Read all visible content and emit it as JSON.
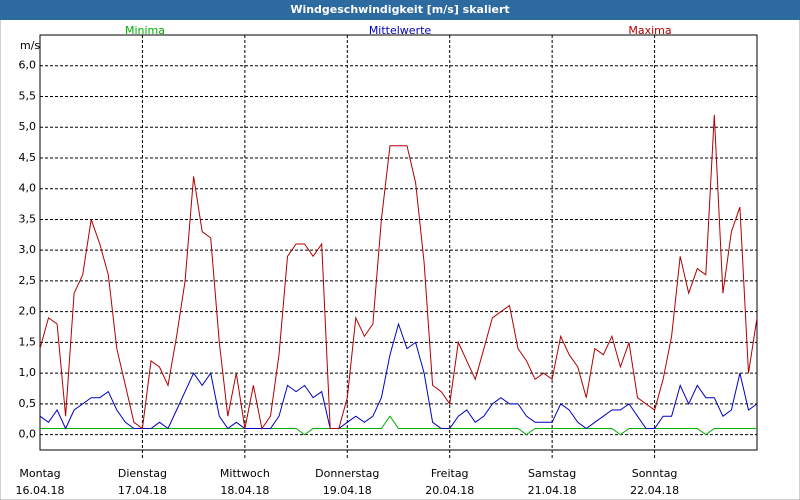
{
  "chart_data": {
    "type": "line",
    "title": "Windgeschwindigkeit [m/s] skaliert",
    "y_label": "m/s",
    "x_labels": [
      {
        "weekday": "Montag",
        "date": "16.04.18"
      },
      {
        "weekday": "Dienstag",
        "date": "17.04.18"
      },
      {
        "weekday": "Mittwoch",
        "date": "18.04.18"
      },
      {
        "weekday": "Donnerstag",
        "date": "19.04.18"
      },
      {
        "weekday": "Freitag",
        "date": "20.04.18"
      },
      {
        "weekday": "Samstag",
        "date": "21.04.18"
      },
      {
        "weekday": "Sonntag",
        "date": "22.04.18"
      }
    ],
    "ylim": [
      -0.25,
      6.5
    ],
    "yticks": [
      {
        "value": 0,
        "label": "0,0"
      },
      {
        "value": 0.5,
        "label": "0,5"
      },
      {
        "value": 1,
        "label": "1,0"
      },
      {
        "value": 1.5,
        "label": "1,5"
      },
      {
        "value": 2,
        "label": "2,0"
      },
      {
        "value": 2.5,
        "label": "2,5"
      },
      {
        "value": 3,
        "label": "3,0"
      },
      {
        "value": 3.5,
        "label": "3,5"
      },
      {
        "value": 4,
        "label": "4,0"
      },
      {
        "value": 4.5,
        "label": "4,5"
      },
      {
        "value": 5,
        "label": "5,0"
      },
      {
        "value": 5.5,
        "label": "5,5"
      },
      {
        "value": 6,
        "label": "6,0"
      }
    ],
    "grid": true,
    "series": [
      {
        "name": "Minima",
        "color": "#00b000",
        "values": [
          0.1,
          0.1,
          0.1,
          0.1,
          0.1,
          0.1,
          0.1,
          0.1,
          0.1,
          0.1,
          0.1,
          0.1,
          0.1,
          0.1,
          0.1,
          0.1,
          0.1,
          0.1,
          0.1,
          0.1,
          0.1,
          0.1,
          0.1,
          0.1,
          0.1,
          0.1,
          0.1,
          0.1,
          0.1,
          0.1,
          0.1,
          0.0,
          0.1,
          0.1,
          0.1,
          0.1,
          0.1,
          0.1,
          0.1,
          0.1,
          0.1,
          0.3,
          0.1,
          0.1,
          0.1,
          0.1,
          0.1,
          0.1,
          0.1,
          0.1,
          0.1,
          0.1,
          0.1,
          0.1,
          0.1,
          0.1,
          0.1,
          0.0,
          0.1,
          0.1,
          0.1,
          0.1,
          0.1,
          0.1,
          0.1,
          0.1,
          0.1,
          0.1,
          0.0,
          0.1,
          0.1,
          0.1,
          0.1,
          0.1,
          0.1,
          0.1,
          0.1,
          0.1,
          0.0,
          0.1,
          0.1,
          0.1,
          0.1,
          0.1,
          0.1
        ]
      },
      {
        "name": "Mittelwerte",
        "color": "#0000c0",
        "values": [
          0.3,
          0.2,
          0.4,
          0.1,
          0.4,
          0.5,
          0.6,
          0.6,
          0.7,
          0.4,
          0.2,
          0.1,
          0.1,
          0.1,
          0.2,
          0.1,
          0.4,
          0.7,
          1.0,
          0.8,
          1.0,
          0.3,
          0.1,
          0.2,
          0.1,
          0.1,
          0.1,
          0.1,
          0.3,
          0.8,
          0.7,
          0.8,
          0.6,
          0.7,
          0.1,
          0.1,
          0.2,
          0.3,
          0.2,
          0.3,
          0.6,
          1.3,
          1.8,
          1.4,
          1.5,
          1.0,
          0.2,
          0.1,
          0.1,
          0.3,
          0.4,
          0.2,
          0.3,
          0.5,
          0.6,
          0.5,
          0.5,
          0.3,
          0.2,
          0.2,
          0.2,
          0.5,
          0.4,
          0.2,
          0.1,
          0.2,
          0.3,
          0.4,
          0.4,
          0.5,
          0.3,
          0.1,
          0.1,
          0.3,
          0.3,
          0.8,
          0.5,
          0.8,
          0.6,
          0.6,
          0.3,
          0.4,
          1.0,
          0.4,
          0.5
        ]
      },
      {
        "name": "Maxima",
        "color": "#b00000",
        "values": [
          1.4,
          1.9,
          1.8,
          0.3,
          2.3,
          2.6,
          3.5,
          3.1,
          2.6,
          1.4,
          0.8,
          0.2,
          0.1,
          1.2,
          1.1,
          0.8,
          1.6,
          2.5,
          4.2,
          3.3,
          3.2,
          1.5,
          0.3,
          1.0,
          0.1,
          0.8,
          0.1,
          0.3,
          1.3,
          2.9,
          3.1,
          3.1,
          2.9,
          3.1,
          0.1,
          0.1,
          0.6,
          1.9,
          1.6,
          1.8,
          3.5,
          4.7,
          4.7,
          4.7,
          4.1,
          2.8,
          0.8,
          0.7,
          0.5,
          1.5,
          1.2,
          0.9,
          1.4,
          1.9,
          2.0,
          2.1,
          1.4,
          1.2,
          0.9,
          1.0,
          0.9,
          1.6,
          1.3,
          1.1,
          0.6,
          1.4,
          1.3,
          1.6,
          1.1,
          1.5,
          0.6,
          0.5,
          0.4,
          0.9,
          1.6,
          2.9,
          2.3,
          2.7,
          2.6,
          5.2,
          2.3,
          3.3,
          3.7,
          1.0,
          1.9
        ]
      }
    ]
  }
}
